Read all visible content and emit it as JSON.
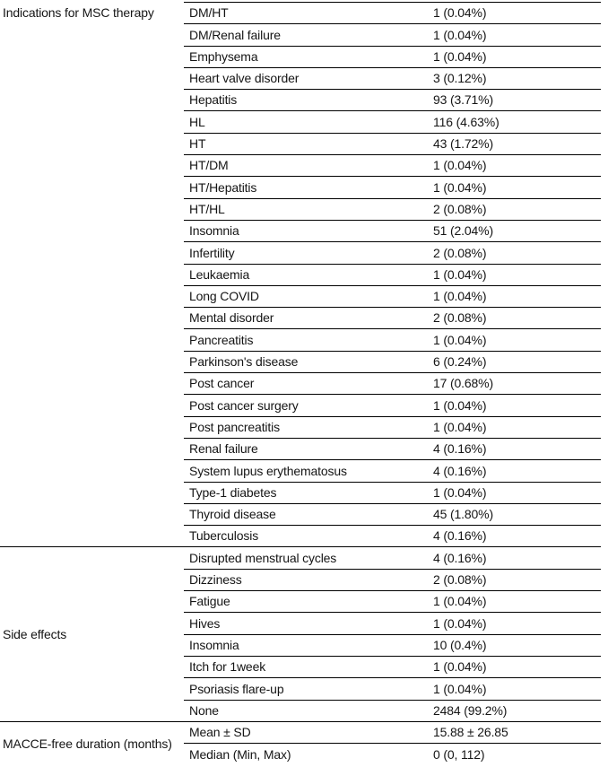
{
  "table": {
    "groups": [
      {
        "category": "Indications for MSC therapy",
        "rows": [
          {
            "label": "DM/HT",
            "value": "1 (0.04%)"
          },
          {
            "label": "DM/Renal failure",
            "value": "1 (0.04%)"
          },
          {
            "label": "Emphysema",
            "value": "1 (0.04%)"
          },
          {
            "label": "Heart valve disorder",
            "value": "3 (0.12%)"
          },
          {
            "label": "Hepatitis",
            "value": "93 (3.71%)"
          },
          {
            "label": "HL",
            "value": "116 (4.63%)"
          },
          {
            "label": "HT",
            "value": "43 (1.72%)"
          },
          {
            "label": "HT/DM",
            "value": "1 (0.04%)"
          },
          {
            "label": "HT/Hepatitis",
            "value": "1 (0.04%)"
          },
          {
            "label": "HT/HL",
            "value": "2 (0.08%)"
          },
          {
            "label": "Insomnia",
            "value": "51 (2.04%)"
          },
          {
            "label": "Infertility",
            "value": "2 (0.08%)"
          },
          {
            "label": "Leukaemia",
            "value": "1 (0.04%)"
          },
          {
            "label": "Long COVID",
            "value": "1 (0.04%)"
          },
          {
            "label": "Mental disorder",
            "value": "2 (0.08%)"
          },
          {
            "label": "Pancreatitis",
            "value": "1 (0.04%)"
          },
          {
            "label": "Parkinson's disease",
            "value": "6 (0.24%)"
          },
          {
            "label": "Post cancer",
            "value": "17 (0.68%)"
          },
          {
            "label": "Post cancer surgery",
            "value": "1 (0.04%)"
          },
          {
            "label": "Post pancreatitis",
            "value": "1 (0.04%)"
          },
          {
            "label": "Renal failure",
            "value": "4 (0.16%)"
          },
          {
            "label": "System lupus erythematosus",
            "value": "4 (0.16%)"
          },
          {
            "label": "Type-1 diabetes",
            "value": "1 (0.04%)"
          },
          {
            "label": "Thyroid disease",
            "value": "45 (1.80%)"
          },
          {
            "label": "Tuberculosis",
            "value": "4 (0.16%)"
          }
        ]
      },
      {
        "category": "Side effects",
        "rows": [
          {
            "label": "Disrupted menstrual cycles",
            "value": "4 (0.16%)"
          },
          {
            "label": "Dizziness",
            "value": "2 (0.08%)"
          },
          {
            "label": "Fatigue",
            "value": "1 (0.04%)"
          },
          {
            "label": "Hives",
            "value": "1 (0.04%)"
          },
          {
            "label": "Insomnia",
            "value": "10 (0.4%)"
          },
          {
            "label": "Itch for 1week",
            "value": "1 (0.04%)"
          },
          {
            "label": "Psoriasis flare-up",
            "value": "1 (0.04%)"
          },
          {
            "label": "None",
            "value": "2484 (99.2%)"
          }
        ]
      },
      {
        "category": "MACCE-free duration (months)",
        "rows": [
          {
            "label": "Mean ± SD",
            "value": "15.88 ± 26.85"
          },
          {
            "label": "Median (Min, Max)",
            "value": "0 (0, 112)"
          }
        ]
      }
    ]
  }
}
